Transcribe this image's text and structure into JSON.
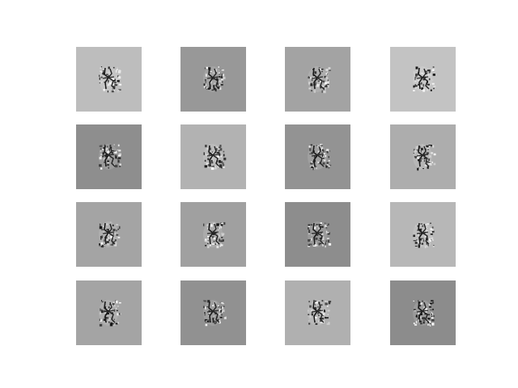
{
  "grid": {
    "rows": 4,
    "cols": 4,
    "tiles": [
      {
        "background": "#bdbdbd"
      },
      {
        "background": "#989898"
      },
      {
        "background": "#a3a3a3"
      },
      {
        "background": "#c3c3c3"
      },
      {
        "background": "#8e8e8e"
      },
      {
        "background": "#b2b2b2"
      },
      {
        "background": "#939393"
      },
      {
        "background": "#adadad"
      },
      {
        "background": "#a4a4a4"
      },
      {
        "background": "#a0a0a0"
      },
      {
        "background": "#8d8d8d"
      },
      {
        "background": "#b7b7b7"
      },
      {
        "background": "#a4a4a4"
      },
      {
        "background": "#919191"
      },
      {
        "background": "#b0b0b0"
      },
      {
        "background": "#8c8c8c"
      }
    ]
  }
}
